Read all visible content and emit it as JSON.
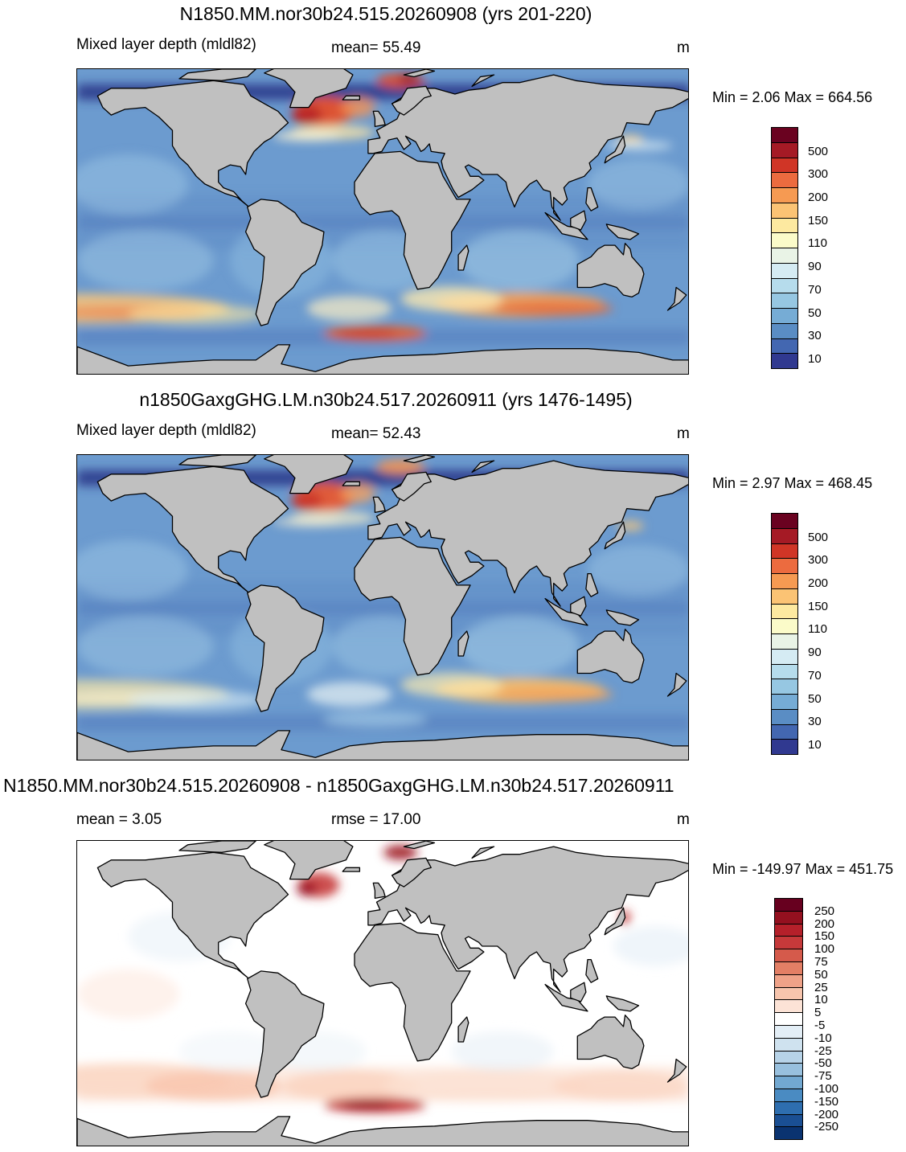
{
  "panels": [
    {
      "title": "N1850.MM.nor30b24.515.20260908 (yrs 201-220)",
      "left_label": "Mixed layer depth (mldl82)",
      "center_label": "mean=  55.49",
      "units": "m",
      "minmax": "Min =   2.06 Max = 664.56",
      "map_style": "abs1",
      "colorbar": {
        "labels": [
          "500",
          "300",
          "200",
          "150",
          "110",
          "90",
          "70",
          "50",
          "30",
          "10"
        ],
        "colors": [
          "#6a0220",
          "#a51a25",
          "#d03526",
          "#ec6b3f",
          "#f69a52",
          "#fbc374",
          "#fde9a0",
          "#fbfbc9",
          "#e9f3e6",
          "#d5ebf3",
          "#b6dcec",
          "#96c7e2",
          "#76acd5",
          "#5a8dc4",
          "#4367b1",
          "#303990"
        ]
      }
    },
    {
      "title": "n1850GaxgGHG.LM.n30b24.517.20260911 (yrs 1476-1495)",
      "left_label": "Mixed layer depth (mldl82)",
      "center_label": "mean=  52.43",
      "units": "m",
      "minmax": "Min =   2.97 Max = 468.45",
      "map_style": "abs2",
      "colorbar": {
        "labels": [
          "500",
          "300",
          "200",
          "150",
          "110",
          "90",
          "70",
          "50",
          "30",
          "10"
        ],
        "colors": [
          "#6a0220",
          "#a51a25",
          "#d03526",
          "#ec6b3f",
          "#f69a52",
          "#fbc374",
          "#fde9a0",
          "#fbfbc9",
          "#e9f3e6",
          "#d5ebf3",
          "#b6dcec",
          "#96c7e2",
          "#76acd5",
          "#5a8dc4",
          "#4367b1",
          "#303990"
        ]
      }
    },
    {
      "title": "N1850.MM.nor30b24.515.20260908 - n1850GaxgGHG.LM.n30b24.517.20260911",
      "left_label": "mean =    3.05",
      "center_label": "rmse =   17.00",
      "units": "m",
      "minmax": "Min = -149.97 Max = 451.75",
      "map_style": "diff",
      "colorbar": {
        "labels": [
          "250",
          "200",
          "150",
          "100",
          "75",
          "50",
          "25",
          "10",
          "5",
          "-5",
          "-10",
          "-25",
          "-50",
          "-75",
          "-100",
          "-150",
          "-200",
          "-250"
        ],
        "colors": [
          "#67001f",
          "#94101f",
          "#b5202a",
          "#c6393a",
          "#d55a4b",
          "#e37f65",
          "#efa288",
          "#f7c5ad",
          "#fce3d6",
          "#ffffff",
          "#e3eef6",
          "#cfe2ef",
          "#b7d3e8",
          "#98c0de",
          "#72a8d1",
          "#4a8bc2",
          "#2e6eaf",
          "#1a4f93",
          "#0a3370"
        ]
      }
    }
  ]
}
